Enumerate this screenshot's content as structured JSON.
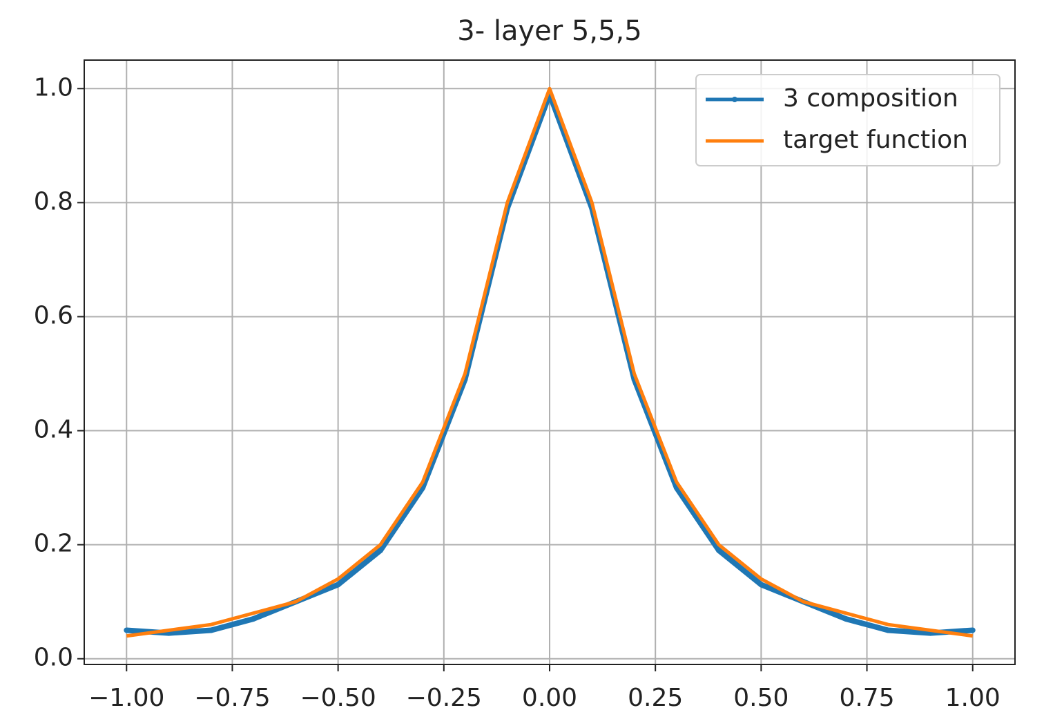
{
  "chart_data": {
    "type": "line",
    "title": "3- layer 5,5,5",
    "x": [
      -1.0,
      -0.9,
      -0.8,
      -0.7,
      -0.6,
      -0.5,
      -0.4,
      -0.3,
      -0.2,
      -0.1,
      0.0,
      0.1,
      0.2,
      0.3,
      0.4,
      0.5,
      0.6,
      0.7,
      0.8,
      0.9,
      1.0
    ],
    "series": [
      {
        "name": "3 composition",
        "color": "#1f77b4",
        "marker": true,
        "values": [
          0.05,
          0.045,
          0.05,
          0.07,
          0.1,
          0.13,
          0.19,
          0.3,
          0.49,
          0.79,
          0.99,
          0.79,
          0.49,
          0.3,
          0.19,
          0.13,
          0.1,
          0.07,
          0.05,
          0.045,
          0.05
        ]
      },
      {
        "name": "target function",
        "color": "#ff7f0e",
        "marker": false,
        "values": [
          0.04,
          0.05,
          0.06,
          0.08,
          0.1,
          0.14,
          0.2,
          0.31,
          0.5,
          0.8,
          1.0,
          0.8,
          0.5,
          0.31,
          0.2,
          0.14,
          0.1,
          0.08,
          0.06,
          0.05,
          0.04
        ]
      }
    ],
    "xlim": [
      -1.1,
      1.1
    ],
    "ylim": [
      -0.01,
      1.05
    ],
    "xticks": [
      {
        "value": -1.0,
        "label": "−1.00"
      },
      {
        "value": -0.75,
        "label": "−0.75"
      },
      {
        "value": -0.5,
        "label": "−0.50"
      },
      {
        "value": -0.25,
        "label": "−0.25"
      },
      {
        "value": 0,
        "label": "0.00"
      },
      {
        "value": 0.25,
        "label": "0.25"
      },
      {
        "value": 0.5,
        "label": "0.50"
      },
      {
        "value": 0.75,
        "label": "0.75"
      },
      {
        "value": 1.0,
        "label": "1.00"
      }
    ],
    "yticks": [
      {
        "value": 0,
        "label": "0.0"
      },
      0.2,
      0.4,
      0.6,
      0.8,
      {
        "value": 1.0,
        "label": "1.0"
      }
    ],
    "grid": true,
    "legend": "upper right"
  }
}
